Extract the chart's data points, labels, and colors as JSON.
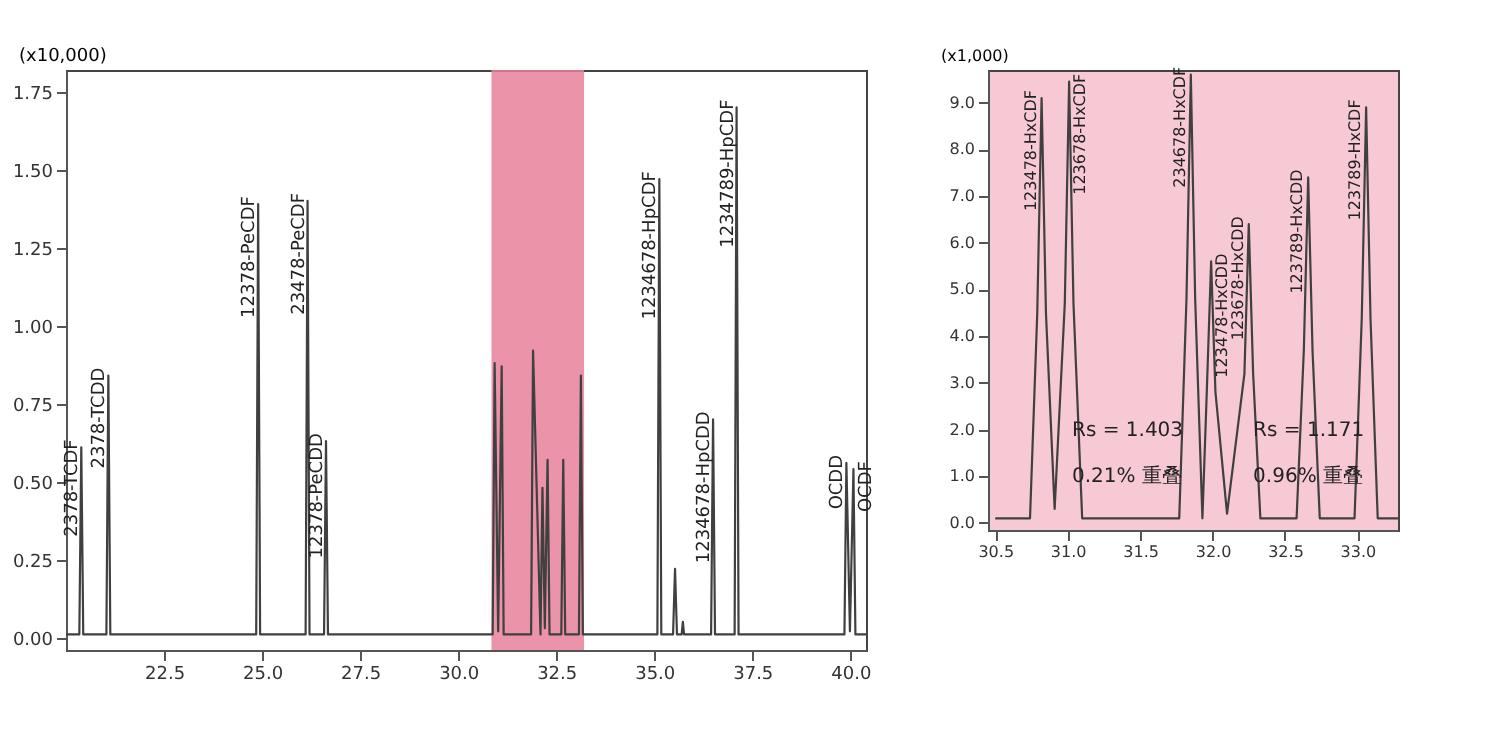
{
  "chart_data": [
    {
      "type": "line",
      "ylabel": "(x10,000)",
      "xlim": [
        20.0,
        40.4
      ],
      "xticks": [
        {
          "value": 22.5,
          "label": "22.5"
        },
        {
          "value": 25.0,
          "label": "25.0"
        },
        {
          "value": 27.5,
          "label": "27.5"
        },
        {
          "value": 30.0,
          "label": "30.0"
        },
        {
          "value": 32.5,
          "label": "32.5"
        },
        {
          "value": 35.0,
          "label": "35.0"
        },
        {
          "value": 37.5,
          "label": "37.5"
        },
        {
          "value": 40.0,
          "label": "40.0"
        }
      ],
      "ylim": [
        -0.04,
        1.82
      ],
      "yticks": [
        {
          "value": 0,
          "label": "0.00"
        },
        {
          "value": 0.25,
          "label": "0.25"
        },
        {
          "value": 0.5,
          "label": "0.50"
        },
        {
          "value": 0.75,
          "label": "0.75"
        },
        {
          "value": 1.0,
          "label": "1.00"
        },
        {
          "value": 1.25,
          "label": "1.25"
        },
        {
          "value": 1.5,
          "label": "1.50"
        },
        {
          "value": 1.75,
          "label": "1.75"
        }
      ],
      "grid": false,
      "legend": false,
      "series": [
        {
          "color": "#404040",
          "x": [
            20.0,
            20.34,
            20.39,
            20.44,
            21.03,
            21.08,
            21.13,
            24.85,
            24.9,
            24.95,
            26.11,
            26.16,
            26.21,
            26.58,
            26.63,
            26.68,
            30.88,
            30.93,
            31.02,
            31.11,
            31.16,
            31.86,
            31.91,
            32.1,
            32.15,
            32.21,
            32.28,
            32.33,
            32.63,
            32.68,
            32.73,
            33.08,
            33.13,
            33.18,
            35.08,
            35.13,
            35.18,
            35.48,
            35.53,
            35.58,
            35.7,
            35.73,
            35.76,
            36.45,
            36.5,
            36.55,
            37.05,
            37.1,
            37.15,
            39.85,
            39.9,
            39.99,
            40.08,
            40.13,
            40.4
          ],
          "values": [
            0.01,
            0.01,
            0.61,
            0.01,
            0.01,
            0.84,
            0.01,
            0.01,
            1.39,
            0.01,
            0.01,
            1.4,
            0.01,
            0.01,
            0.63,
            0.01,
            0.01,
            0.88,
            0.02,
            0.87,
            0.01,
            0.01,
            0.92,
            0.01,
            0.48,
            0.03,
            0.57,
            0.01,
            0.01,
            0.57,
            0.01,
            0.01,
            0.84,
            0.01,
            0.01,
            1.47,
            0.01,
            0.01,
            0.22,
            0.01,
            0.01,
            0.05,
            0.01,
            0.01,
            0.7,
            0.01,
            0.01,
            1.7,
            0.01,
            0.01,
            0.56,
            0.02,
            0.54,
            0.01,
            0.01
          ]
        }
      ],
      "bands": [
        {
          "axis": "x",
          "from": 30.85,
          "to": 33.21,
          "color": "#e8809a"
        }
      ],
      "annotations": [
        {
          "text": "2378-TCDF",
          "x": 20.39,
          "y": 0.61
        },
        {
          "text": "2378-TCDD",
          "x": 21.08,
          "y": 0.84
        },
        {
          "text": "12378-PeCDF",
          "x": 24.9,
          "y": 1.39
        },
        {
          "text": "23478-PeCDF",
          "x": 26.16,
          "y": 1.4
        },
        {
          "text": "12378-PeCDD",
          "x": 26.63,
          "y": 0.63
        },
        {
          "text": "1234678-HpCDF",
          "x": 35.13,
          "y": 1.47
        },
        {
          "text": "1234678-HpCDD",
          "x": 36.5,
          "y": 0.7
        },
        {
          "text": "1234789-HpCDF",
          "x": 37.1,
          "y": 1.7
        },
        {
          "text": "OCDD",
          "x": 39.9,
          "y": 0.56
        },
        {
          "text": "OCDF",
          "x": 40.08,
          "y": 0.54
        }
      ]
    },
    {
      "type": "line",
      "ylabel": "(x1,000)",
      "xlim": [
        30.45,
        33.28
      ],
      "xticks": [
        {
          "value": 30.5,
          "label": "30.5"
        },
        {
          "value": 31.0,
          "label": "31.0"
        },
        {
          "value": 31.5,
          "label": "31.5"
        },
        {
          "value": 32.0,
          "label": "32.0"
        },
        {
          "value": 32.5,
          "label": "32.5"
        },
        {
          "value": 33.0,
          "label": "33.0"
        }
      ],
      "ylim": [
        -0.15,
        9.7
      ],
      "yticks": [
        {
          "value": 0,
          "label": "0.0"
        },
        {
          "value": 1,
          "label": "1.0"
        },
        {
          "value": 2,
          "label": "2.0"
        },
        {
          "value": 3,
          "label": "3.0"
        },
        {
          "value": 4,
          "label": "4.0"
        },
        {
          "value": 5,
          "label": "5.0"
        },
        {
          "value": 6,
          "label": "6.0"
        },
        {
          "value": 7,
          "label": "7.0"
        },
        {
          "value": 8,
          "label": "8.0"
        },
        {
          "value": 9,
          "label": "9.0"
        }
      ],
      "grid": false,
      "legend": false,
      "series": [
        {
          "color": "#404040",
          "x": [
            30.5,
            30.74,
            30.79,
            30.82,
            30.85,
            30.91,
            30.98,
            31.01,
            31.04,
            31.1,
            31.77,
            31.82,
            31.85,
            31.88,
            31.93,
            31.96,
            31.99,
            32.02,
            32.1,
            32.22,
            32.25,
            32.28,
            32.33,
            32.58,
            32.63,
            32.66,
            32.69,
            32.74,
            32.98,
            33.03,
            33.06,
            33.09,
            33.14,
            33.28
          ],
          "values": [
            0.1,
            0.1,
            4.5,
            9.1,
            4.5,
            0.3,
            4.7,
            9.45,
            4.7,
            0.1,
            0.1,
            4.8,
            9.6,
            4.8,
            0.1,
            2.8,
            5.6,
            2.8,
            0.2,
            3.2,
            6.4,
            3.2,
            0.1,
            0.1,
            3.7,
            7.4,
            3.7,
            0.1,
            0.1,
            4.4,
            8.9,
            4.4,
            0.1,
            0.1
          ]
        }
      ],
      "annotations": [
        {
          "text": "123478-HxCDF",
          "x": 30.82,
          "y": 9.1
        },
        {
          "text": "123678-HxCDF",
          "x": 31.01,
          "y": 9.45
        },
        {
          "text": "234678-HxCDF",
          "x": 31.85,
          "y": 9.6
        },
        {
          "text": "123478-HxCDD",
          "x": 31.99,
          "y": 5.6
        },
        {
          "text": "123678-HxCDD",
          "x": 32.25,
          "y": 6.4
        },
        {
          "text": "123789-HxCDD",
          "x": 32.66,
          "y": 7.4
        },
        {
          "text": "123789-HxCDF",
          "x": 33.06,
          "y": 8.9
        },
        {
          "text": "Rs = 1.403",
          "x": 31.03,
          "y": 2.0
        },
        {
          "text": "0.21% 重叠",
          "x": 31.03,
          "y": 1.0
        },
        {
          "text": "Rs = 1.171",
          "x": 32.28,
          "y": 2.0
        },
        {
          "text": "0.96% 重叠",
          "x": 32.28,
          "y": 1.0
        }
      ]
    }
  ]
}
